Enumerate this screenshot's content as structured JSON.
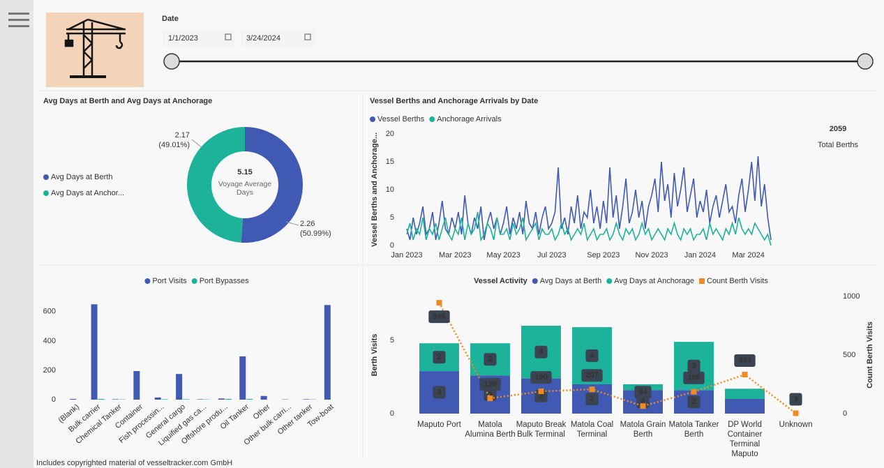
{
  "header": {
    "date_label": "Date",
    "start_date": "1/1/2023",
    "end_date": "3/24/2024"
  },
  "footer": "Includes copyrighted material of vesseltracker.com GmbH",
  "chart_data": [
    {
      "type": "donut",
      "title": "Avg Days at Berth and Avg Days at Anchorage",
      "categories": [
        "Avg Days at Berth",
        "Avg Days at Anchor..."
      ],
      "values": [
        2.26,
        2.17
      ],
      "percentages": [
        50.99,
        49.01
      ],
      "percentage_labels": [
        "(50.99%)",
        "(49.01%)"
      ],
      "colors": [
        "#4059b3",
        "#1db39a"
      ],
      "center_value": 5.15,
      "center_label": "Voyage Average Days"
    },
    {
      "type": "line",
      "title": "Vessel Berths and Anchorage Arrivals by Date",
      "ylabel": "Vessel Berths and Anchorage...",
      "series": [
        {
          "name": "Vessel Berths",
          "color": "#4059b3",
          "values": [
            3,
            1,
            5,
            2,
            4,
            7,
            2,
            3,
            6,
            1,
            4,
            8,
            3,
            2,
            5,
            3,
            6,
            2,
            9,
            4,
            2,
            5,
            3,
            7,
            1,
            4,
            6,
            3,
            5,
            2,
            4,
            7,
            2,
            5,
            3,
            6,
            2,
            8,
            4,
            3,
            6,
            2,
            5,
            7,
            3,
            4,
            6,
            14,
            3,
            5,
            2,
            7,
            4,
            9,
            3,
            6,
            5,
            10,
            4,
            7,
            3,
            8,
            4,
            14,
            5,
            9,
            3,
            7,
            12,
            4,
            6,
            10,
            5,
            8,
            3,
            7,
            9,
            12,
            6,
            15,
            8,
            11,
            5,
            13,
            7,
            10,
            14,
            6,
            9,
            12,
            5,
            8,
            6,
            10,
            4,
            7,
            9,
            5,
            8,
            11,
            6,
            7,
            4,
            9,
            12,
            6,
            10,
            15,
            8,
            16,
            7,
            11,
            5,
            1
          ]
        },
        {
          "name": "Anchorage Arrivals",
          "color": "#1db39a",
          "values": [
            2,
            4,
            1,
            3,
            2,
            5,
            1,
            3,
            2,
            4,
            1,
            3,
            5,
            2,
            1,
            3,
            2,
            5,
            1,
            4,
            2,
            3,
            6,
            1,
            2,
            4,
            3,
            1,
            5,
            2,
            2,
            3,
            1,
            4,
            2,
            3,
            5,
            1,
            2,
            3,
            4,
            1,
            3,
            2,
            2,
            3,
            1,
            2,
            4,
            2,
            3,
            1,
            2,
            3,
            2,
            4,
            1,
            2,
            3,
            1,
            2,
            2,
            3,
            1,
            2,
            4,
            2,
            1,
            3,
            2,
            3,
            1,
            2,
            4,
            2,
            3,
            1,
            2,
            3,
            2,
            1,
            3,
            2,
            4,
            2,
            1,
            3,
            2,
            3,
            1,
            2,
            2,
            3,
            1,
            4,
            2,
            3,
            2,
            1,
            3,
            2,
            4,
            2,
            5,
            3,
            2,
            3,
            2,
            4,
            3,
            2,
            1,
            2,
            0
          ]
        }
      ],
      "xlim": [
        0,
        113
      ],
      "xticks": [
        {
          "value": 0,
          "label": "Jan 2023"
        },
        {
          "value": 15,
          "label": "Mar 2023"
        },
        {
          "value": 30,
          "label": "May 2023"
        },
        {
          "value": 45,
          "label": "Jul 2023"
        },
        {
          "value": 61,
          "label": "Sep 2023"
        },
        {
          "value": 76,
          "label": "Nov 2023"
        },
        {
          "value": 91,
          "label": "Jan 2024"
        },
        {
          "value": 106,
          "label": "Mar 2024"
        }
      ],
      "ylim": [
        0,
        20
      ],
      "yticks": [
        0,
        5,
        10,
        15,
        20
      ],
      "kpi": {
        "value": 2059,
        "label": "Total Berths"
      }
    },
    {
      "type": "bar",
      "categories": [
        "(Blank)",
        "Bulk carrier",
        "Chemical Tanker",
        "Container",
        "Fish processin...",
        "General cargo",
        "Liquified gas ca...",
        "Offshore produ...",
        "Oil Tanker",
        "Other",
        "Other bulk carri...",
        "Other tanker",
        "Tow-boat"
      ],
      "series": [
        {
          "name": "Port Visits",
          "color": "#4059b3",
          "values": [
            5,
            650,
            3,
            195,
            15,
            175,
            3,
            8,
            295,
            25,
            2,
            3,
            645
          ]
        },
        {
          "name": "Port Bypasses",
          "color": "#1db39a",
          "values": [
            0,
            5,
            2,
            0,
            3,
            3,
            2,
            5,
            5,
            0,
            0,
            2,
            0
          ]
        }
      ],
      "ylim": [
        0,
        680
      ],
      "yticks": [
        0,
        200,
        400,
        600
      ]
    },
    {
      "type": "combo",
      "legend_title": "Vessel Activity",
      "categories": [
        "Maputo Port",
        "Matola Alumina Berth",
        "Maputo Break Bulk Terminal",
        "Matola Coal Terminal",
        "Matola Grain Berth",
        "Matola Tanker Berth",
        "DP World Container Terminal Maputo",
        "Unknown"
      ],
      "series": [
        {
          "name": "Avg Days at Berth",
          "color": "#4059b3",
          "values": [
            2.9,
            2.6,
            2.4,
            2.0,
            1.6,
            1.6,
            1.0,
            0
          ],
          "value_labels": [
            "3",
            "3",
            "2",
            "2",
            "2",
            "2",
            null,
            null
          ]
        },
        {
          "name": "Avg Days at Anchorage",
          "color": "#1db39a",
          "values": [
            1.9,
            2.2,
            3.6,
            3.9,
            0.4,
            3.3,
            0.7,
            0
          ],
          "value_labels": [
            "2",
            "2",
            "4",
            "4",
            null,
            "3",
            null,
            null
          ]
        },
        {
          "name": "Count Berth Visits",
          "color": "#f08a24",
          "axis": "y2",
          "values": [
            946,
            130,
            190,
            207,
            64,
            186,
            333,
            3
          ]
        }
      ],
      "ylabel": "Berth Visits",
      "y2label": "Count Berth Visits",
      "ylim": [
        0,
        8
      ],
      "yticks": [
        0,
        5
      ],
      "y2lim": [
        0,
        1000
      ],
      "y2ticks": [
        0,
        500,
        1000
      ]
    }
  ]
}
